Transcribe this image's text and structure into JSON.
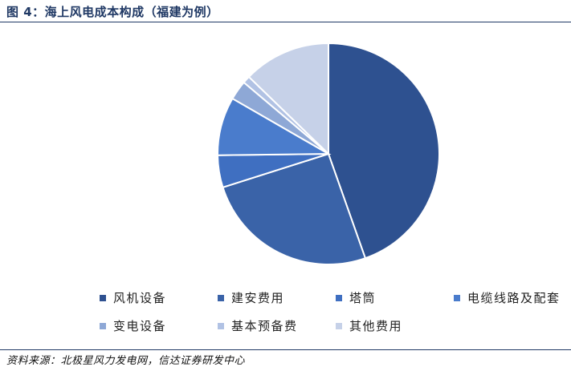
{
  "figure": {
    "title": "图 4：海上风电成本构成（福建为例）",
    "source": "资料来源：北极星风力发电网，信达证券研发中心"
  },
  "chart_data": {
    "type": "pie",
    "title": "",
    "categories": [
      "风机设备",
      "建安费用",
      "塔筒",
      "电缆线路及配套",
      "变电设备",
      "基本预备费",
      "其他费用"
    ],
    "values": [
      45.5,
      26.0,
      4.8,
      8.7,
      2.9,
      1.1,
      13.0
    ],
    "colors": [
      "#2e5190",
      "#3a63a8",
      "#3f6fc1",
      "#4a7ccc",
      "#8ea8d6",
      "#b1c2e4",
      "#c6d1e8"
    ],
    "legend_position": "bottom"
  }
}
